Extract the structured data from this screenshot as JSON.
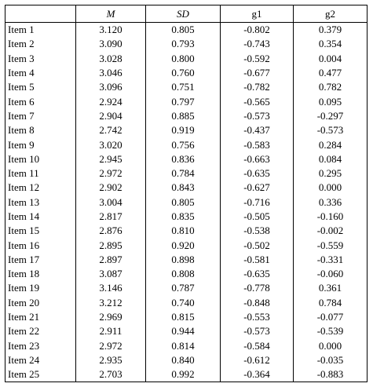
{
  "table": {
    "headers": [
      "",
      "M",
      "SD",
      "g1",
      "g2"
    ],
    "rows": [
      [
        "Item 1",
        "3.120",
        "0.805",
        "-0.802",
        "0.379"
      ],
      [
        "Item 2",
        "3.090",
        "0.793",
        "-0.743",
        "0.354"
      ],
      [
        "Item 3",
        "3.028",
        "0.800",
        "-0.592",
        "0.004"
      ],
      [
        "Item 4",
        "3.046",
        "0.760",
        "-0.677",
        "0.477"
      ],
      [
        "Item 5",
        "3.096",
        "0.751",
        "-0.782",
        "0.782"
      ],
      [
        "Item 6",
        "2.924",
        "0.797",
        "-0.565",
        "0.095"
      ],
      [
        "Item 7",
        "2.904",
        "0.885",
        "-0.573",
        "-0.297"
      ],
      [
        "Item 8",
        "2.742",
        "0.919",
        "-0.437",
        "-0.573"
      ],
      [
        "Item 9",
        "3.020",
        "0.756",
        "-0.583",
        "0.284"
      ],
      [
        "Item 10",
        "2.945",
        "0.836",
        "-0.663",
        "0.084"
      ],
      [
        "Item 11",
        "2.972",
        "0.784",
        "-0.635",
        "0.295"
      ],
      [
        "Item 12",
        "2.902",
        "0.843",
        "-0.627",
        "0.000"
      ],
      [
        "Item 13",
        "3.004",
        "0.805",
        "-0.716",
        "0.336"
      ],
      [
        "Item 14",
        "2.817",
        "0.835",
        "-0.505",
        "-0.160"
      ],
      [
        "Item 15",
        "2.876",
        "0.810",
        "-0.538",
        "-0.002"
      ],
      [
        "Item 16",
        "2.895",
        "0.920",
        "-0.502",
        "-0.559"
      ],
      [
        "Item 17",
        "2.897",
        "0.898",
        "-0.581",
        "-0.331"
      ],
      [
        "Item 18",
        "3.087",
        "0.808",
        "-0.635",
        "-0.060"
      ],
      [
        "Item 19",
        "3.146",
        "0.787",
        "-0.778",
        "0.361"
      ],
      [
        "Item 20",
        "3.212",
        "0.740",
        "-0.848",
        "0.784"
      ],
      [
        "Item 21",
        "2.969",
        "0.815",
        "-0.553",
        "-0.077"
      ],
      [
        "Item 22",
        "2.911",
        "0.944",
        "-0.573",
        "-0.539"
      ],
      [
        "Item 23",
        "2.972",
        "0.814",
        "-0.584",
        "0.000"
      ],
      [
        "Item 24",
        "2.935",
        "0.840",
        "-0.612",
        "-0.035"
      ],
      [
        "Item 25",
        "2.703",
        "0.992",
        "-0.364",
        "-0.883"
      ]
    ]
  }
}
